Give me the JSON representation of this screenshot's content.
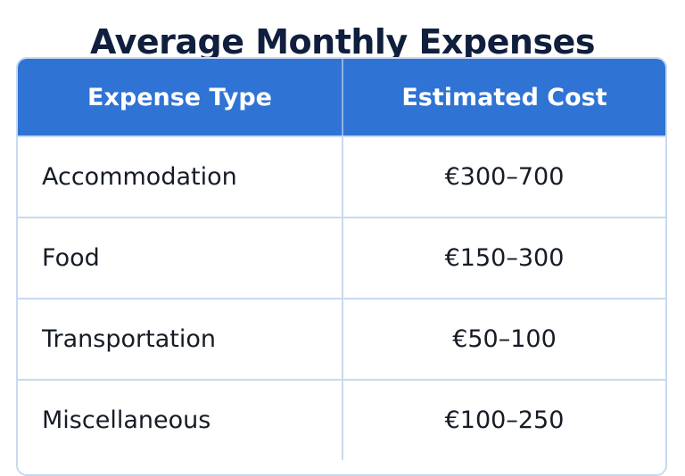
{
  "title": "Average Monthly Expenses",
  "table": {
    "headers": [
      "Expense Type",
      "Estimated Cost"
    ],
    "rows": [
      {
        "type": "Accommodation",
        "cost": "€300–700"
      },
      {
        "type": "Food",
        "cost": "€150–300"
      },
      {
        "type": "Transportation",
        "cost": "€50–100"
      },
      {
        "type": "Miscellaneous",
        "cost": "€100–250"
      }
    ]
  },
  "colors": {
    "title": "#0f1f3d",
    "header_background": "#2f73d4",
    "header_text": "#ffffff",
    "grid_lines": "#c9d9ef",
    "cell_text": "#161c26",
    "background": "#ffffff"
  }
}
